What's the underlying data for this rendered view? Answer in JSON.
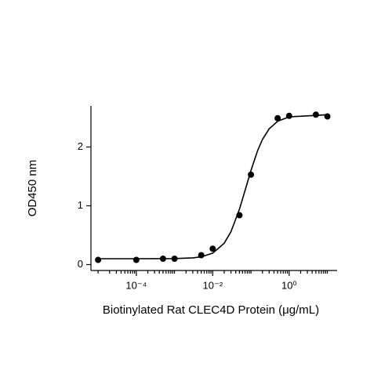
{
  "chart_data": {
    "type": "scatter",
    "x_label": "Biotinylated Rat CLEC4D Protein (μg/mL)",
    "y_label": "OD450 nm",
    "xscale": "log",
    "color": "#000000",
    "x": [
      1e-05,
      0.0001,
      0.0005,
      0.001,
      0.005,
      0.01,
      0.05,
      0.1,
      0.5,
      1,
      5,
      10
    ],
    "values": [
      0.08,
      0.08,
      0.1,
      0.1,
      0.16,
      0.27,
      0.84,
      1.53,
      2.49,
      2.53,
      2.55,
      2.52
    ],
    "curve": {
      "x": [
        1e-05,
        0.0001,
        0.001,
        0.003,
        0.005,
        0.01,
        0.02,
        0.03,
        0.05,
        0.075,
        0.1,
        0.15,
        0.2,
        0.3,
        0.5,
        1,
        10
      ],
      "values": [
        0.1,
        0.1,
        0.102,
        0.114,
        0.132,
        0.194,
        0.364,
        0.56,
        0.941,
        1.325,
        1.6,
        1.942,
        2.128,
        2.309,
        2.438,
        2.512,
        2.549
      ]
    },
    "xlim": [
      6.5e-06,
      18
    ],
    "ylim": [
      -0.1,
      2.7
    ],
    "xticks": [
      {
        "value": 0.0001,
        "label": "10⁻⁴"
      },
      {
        "value": 0.01,
        "label": "10⁻²"
      },
      {
        "value": 1,
        "label": "10⁰"
      }
    ],
    "xminorticks": [
      1e-05,
      2e-05,
      3e-05,
      4e-05,
      5e-05,
      6e-05,
      7e-05,
      8e-05,
      9e-05,
      0.0002,
      0.0003,
      0.0004,
      0.0005,
      0.0006,
      0.0007,
      0.0008,
      0.0009,
      0.001,
      0.002,
      0.003,
      0.004,
      0.005,
      0.006,
      0.007,
      0.008,
      0.009,
      0.02,
      0.03,
      0.04,
      0.05,
      0.06,
      0.07,
      0.08,
      0.09,
      0.1,
      0.2,
      0.3,
      0.4,
      0.5,
      0.6,
      0.7,
      0.8,
      0.9,
      2,
      3,
      4,
      5,
      6,
      7,
      8,
      9,
      10
    ],
    "yticks": [
      0,
      1,
      2
    ]
  }
}
